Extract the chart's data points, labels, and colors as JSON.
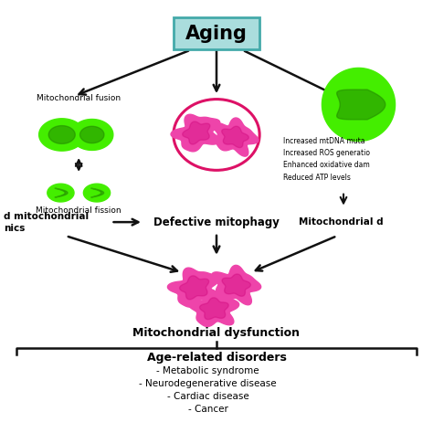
{
  "title": "Aging",
  "title_box_facecolor": "#aadddd",
  "title_box_edgecolor": "#44aaaa",
  "background_color": "#ffffff",
  "green_fill": "#44ee00",
  "green_dark": "#228800",
  "pink_fill": "#ee44aa",
  "pink_dark": "#cc0077",
  "pink_circle_edge": "#dd1166",
  "arrow_color": "#111111",
  "text_color": "#000000",
  "fusion_label": "Mitochondrial fusion",
  "fission_label": "Mitochondrial fission",
  "defective_label": "Defective mitophagy",
  "dysfunction_label": "Mitochondrial dysfunction",
  "dynamics_line1": "d mitochondrial",
  "dynamics_line2": "nics",
  "mito_d_label": "Mitochondrial d",
  "disorders_title": "Age-related disorders",
  "disorders_list": [
    "- Metabolic syndrome",
    "- Neurodegenerative disease",
    "- Cardiac disease",
    "- Cancer"
  ],
  "mtdna_lines": [
    "Increased mtDNA muta",
    "Increased ROS generatio",
    "Enhanced oxidative dam",
    "Reduced ATP levels"
  ]
}
